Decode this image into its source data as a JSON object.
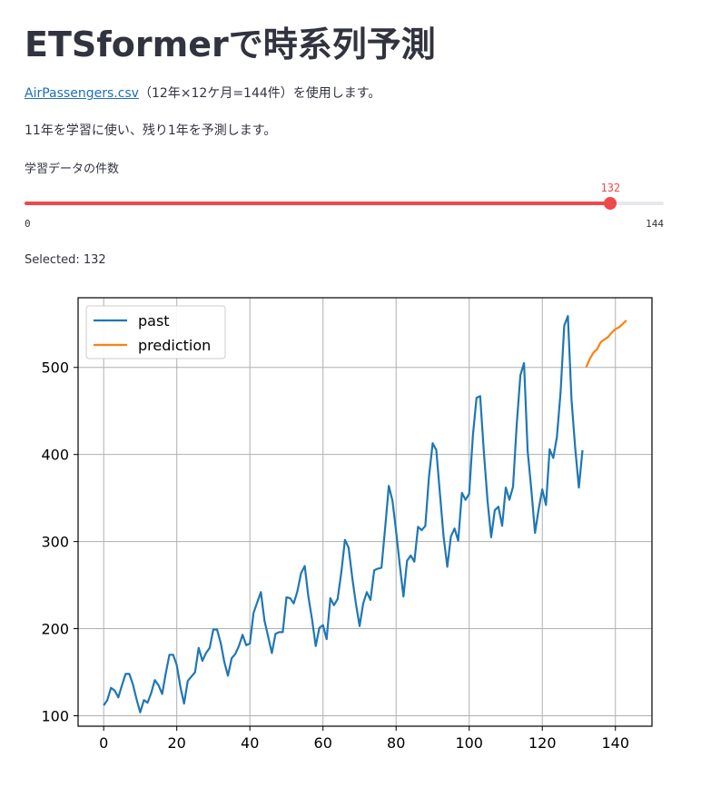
{
  "page": {
    "title": "ETSformerで時系列予測",
    "link_text": "AirPassengers.csv",
    "intro_suffix": "（12年×12ケ月=144件）を使用します。",
    "paragraph2": "11年を学習に使い、残り1年を予測します。"
  },
  "slider": {
    "label": "学習データの件数",
    "min": 0,
    "max": 144,
    "value": 132,
    "value_text": "132",
    "min_text": "0",
    "max_text": "144",
    "color": "#f0484b"
  },
  "selected_text": "Selected: 132",
  "chart_data": {
    "type": "line",
    "title": "",
    "xlabel": "",
    "ylabel": "",
    "xlim": [
      -7,
      150
    ],
    "ylim": [
      88,
      580
    ],
    "xticks": [
      "0",
      "20",
      "40",
      "60",
      "80",
      "100",
      "120",
      "140"
    ],
    "yticks": [
      "100",
      "200",
      "300",
      "400",
      "500"
    ],
    "grid": true,
    "legend_position": "upper-left",
    "series": [
      {
        "name": "past",
        "color": "#1f77b4",
        "x_start": 0,
        "values": [
          112,
          118,
          132,
          129,
          121,
          135,
          148,
          148,
          136,
          119,
          104,
          118,
          115,
          126,
          141,
          135,
          125,
          149,
          170,
          170,
          158,
          133,
          114,
          140,
          145,
          150,
          178,
          163,
          172,
          178,
          199,
          199,
          184,
          162,
          146,
          166,
          171,
          180,
          193,
          181,
          183,
          218,
          230,
          242,
          209,
          191,
          172,
          194,
          196,
          196,
          236,
          235,
          229,
          243,
          264,
          272,
          237,
          211,
          180,
          201,
          204,
          188,
          235,
          227,
          234,
          264,
          302,
          293,
          259,
          229,
          203,
          229,
          242,
          233,
          267,
          269,
          270,
          315,
          364,
          347,
          312,
          274,
          237,
          278,
          284,
          277,
          317,
          313,
          318,
          374,
          413,
          405,
          355,
          306,
          271,
          306,
          315,
          301,
          356,
          348,
          355,
          422,
          465,
          467,
          404,
          347,
          305,
          336,
          340,
          318,
          362,
          348,
          363,
          435,
          491,
          505,
          404,
          359,
          310,
          337,
          360,
          342,
          406,
          396,
          420,
          472,
          548,
          559,
          463,
          407,
          362,
          405
        ]
      },
      {
        "name": "prediction",
        "color": "#ff7f0e",
        "x_start": 132,
        "values": [
          500,
          510,
          517,
          521,
          529,
          532,
          535,
          540,
          544,
          546,
          550,
          554
        ]
      }
    ]
  }
}
